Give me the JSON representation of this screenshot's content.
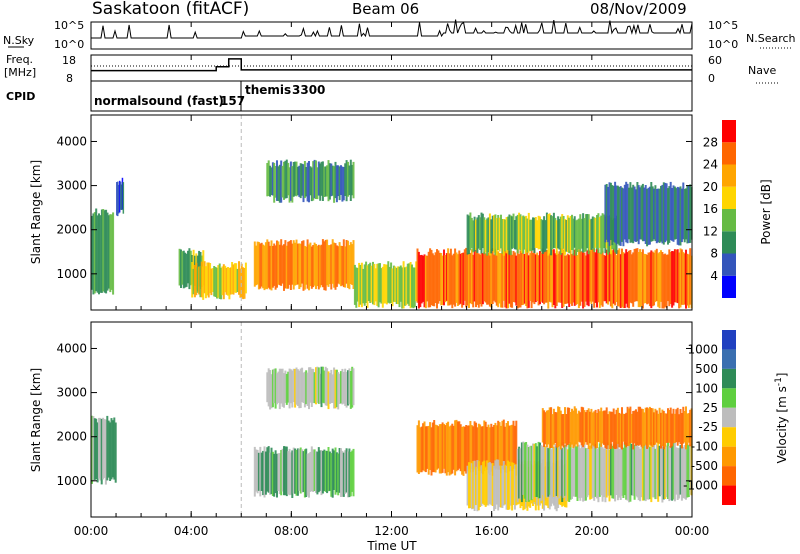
{
  "header": {
    "station": "Saskatoon (fitACF)",
    "beam": "Beam 06",
    "date": "08/Nov/2009"
  },
  "noise_panel": {
    "left_label": "N.Sky",
    "left_ticks": [
      "10^5",
      "10^0"
    ],
    "right_label": "N.Search",
    "right_ticks": [
      "10^5",
      "10^0"
    ]
  },
  "freq_panel": {
    "left_label": [
      "Freq.",
      "[MHz]"
    ],
    "left_ticks": [
      "18",
      "8"
    ],
    "right_label": "Nave",
    "right_ticks": [
      "60",
      "0"
    ]
  },
  "cpid": {
    "label": "CPID",
    "programs": [
      {
        "name": "normalsound (fast)",
        "id": "157",
        "start_hour": 0,
        "end_hour": 6
      },
      {
        "name": "themis",
        "id": "3300",
        "start_hour": 6,
        "end_hour": 24
      }
    ]
  },
  "colors": {
    "power": [
      "#0000ff",
      "#3355bb",
      "#2e8b57",
      "#66bb44",
      "#ffd500",
      "#ffa500",
      "#ff6600",
      "#ff0000"
    ],
    "velocity": [
      "#2040c0",
      "#3a6fb0",
      "#2e8b57",
      "#5fcf3f",
      "#bdbdbd",
      "#ffcc00",
      "#ff9900",
      "#ff6600",
      "#ff0000"
    ]
  },
  "chart_data": [
    {
      "type": "heatmap",
      "title": "Power",
      "xlabel": "Time UT",
      "ylabel": "Slant Range [km]",
      "x_tick_labels": [
        "00:00",
        "04:00",
        "08:00",
        "12:00",
        "16:00",
        "20:00",
        "00:00"
      ],
      "x_hours": [
        0,
        4,
        8,
        12,
        16,
        20,
        24
      ],
      "y_ticks": [
        1000,
        2000,
        3000,
        4000
      ],
      "ylim": [
        180,
        4600
      ],
      "colorbar": {
        "label": "Power [dB]",
        "ticks": [
          "4",
          "8",
          "12",
          "16",
          "20",
          "24",
          "28"
        ],
        "range": [
          0,
          30
        ]
      },
      "regions": [
        {
          "t0": 0.0,
          "t1": 0.9,
          "r0": 600,
          "r1": 2400,
          "level": 12
        },
        {
          "t0": 1.0,
          "t1": 1.3,
          "r0": 2400,
          "r1": 3100,
          "level": 6
        },
        {
          "t0": 3.5,
          "t1": 4.5,
          "r0": 700,
          "r1": 1500,
          "level": 14
        },
        {
          "t0": 4.0,
          "t1": 6.2,
          "r0": 500,
          "r1": 1200,
          "level": 18
        },
        {
          "t0": 6.5,
          "t1": 10.5,
          "r0": 700,
          "r1": 1700,
          "level": 24
        },
        {
          "t0": 7.0,
          "t1": 10.5,
          "r0": 2700,
          "r1": 3500,
          "level": 10
        },
        {
          "t0": 10.5,
          "t1": 13.0,
          "r0": 300,
          "r1": 1200,
          "level": 16
        },
        {
          "t0": 13.0,
          "t1": 24.0,
          "r0": 300,
          "r1": 1500,
          "level": 26
        },
        {
          "t0": 15.0,
          "t1": 21.0,
          "r0": 1500,
          "r1": 2300,
          "level": 14
        },
        {
          "t0": 20.5,
          "t1": 24.0,
          "r0": 1700,
          "r1": 3000,
          "level": 8
        }
      ]
    },
    {
      "type": "heatmap",
      "title": "Velocity",
      "xlabel": "Time UT",
      "ylabel": "Slant Range [km]",
      "x_tick_labels": [
        "00:00",
        "04:00",
        "08:00",
        "12:00",
        "16:00",
        "20:00",
        "00:00"
      ],
      "x_hours": [
        0,
        4,
        8,
        12,
        16,
        20,
        24
      ],
      "y_ticks": [
        1000,
        2000,
        3000,
        4000
      ],
      "ylim": [
        180,
        4600
      ],
      "colorbar": {
        "label": "Velocity [m s^-1]",
        "ticks": [
          "1000",
          "500",
          "100",
          "25",
          "-25",
          "-100",
          "-500",
          "-1000"
        ]
      },
      "regions": [
        {
          "t0": 0.0,
          "t1": 1.0,
          "r0": 1000,
          "r1": 2400,
          "level": 25
        },
        {
          "t0": 6.5,
          "t1": 10.5,
          "r0": 700,
          "r1": 1700,
          "level": 25
        },
        {
          "t0": 7.0,
          "t1": 10.5,
          "r0": 2700,
          "r1": 3500,
          "level": 0
        },
        {
          "t0": 13.0,
          "t1": 17.0,
          "r0": 1200,
          "r1": 2300,
          "level": -100
        },
        {
          "t0": 15.0,
          "t1": 19.0,
          "r0": 400,
          "r1": 1400,
          "level": -25
        },
        {
          "t0": 17.0,
          "t1": 24.0,
          "r0": 600,
          "r1": 1800,
          "level": 0
        },
        {
          "t0": 18.0,
          "t1": 24.0,
          "r0": 1800,
          "r1": 2600,
          "level": -100
        }
      ]
    }
  ]
}
